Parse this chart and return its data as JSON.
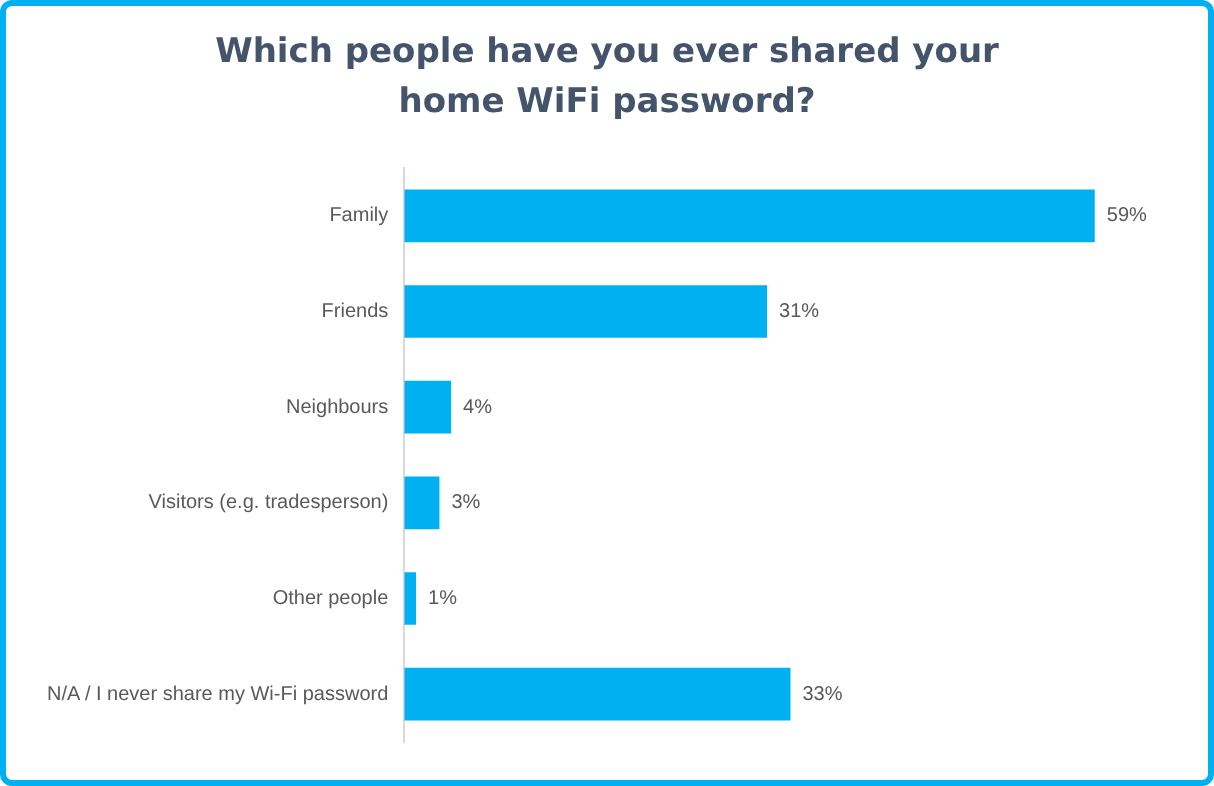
{
  "chart_data": {
    "type": "bar",
    "orientation": "horizontal",
    "title": "Which people have you ever shared your home WiFi password?",
    "categories": [
      "Family",
      "Friends",
      "Neighbours",
      "Visitors (e.g. tradesperson)",
      "Other people",
      "N/A / I never share my Wi-Fi password"
    ],
    "values": [
      59,
      31,
      4,
      3,
      1,
      33
    ],
    "value_labels": [
      "59%",
      "31%",
      "4%",
      "3%",
      "1%",
      "33%"
    ],
    "color": "#00b0f0",
    "tick_labels": "y"
  }
}
